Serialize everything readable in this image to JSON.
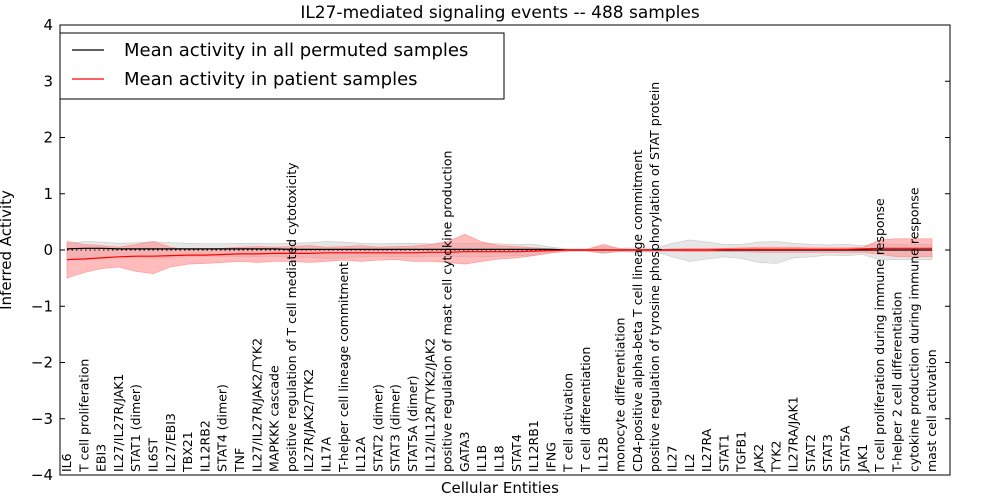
{
  "chart_data": {
    "type": "line",
    "title": "IL27-mediated signaling events -- 488 samples",
    "xlabel": "Cellular Entities",
    "ylabel": "Inferred Activity",
    "ylim": [
      -4,
      4
    ],
    "yticks": [
      4,
      3,
      2,
      1,
      0,
      -1,
      -2,
      -3,
      -4
    ],
    "ytick_labels": [
      "4",
      "3",
      "2",
      "1",
      "0",
      "−1",
      "−2",
      "−3",
      "−4"
    ],
    "categories": [
      "IL6",
      "T cell proliferation",
      "EBI3",
      "IL27/IL27R/JAK1",
      "STAT1 (dimer)",
      "IL6ST",
      "IL27/EBI3",
      "TBX21",
      "IL12RB2",
      "STAT4 (dimer)",
      "TNF",
      "IL27/IL27R/JAK2/TYK2",
      "MAPKKK cascade",
      "positive regulation of T cell mediated cytotoxicity",
      "IL27R/JAK2/TYK2",
      "IL17A",
      "T-helper cell lineage commitment",
      "IL12A",
      "STAT2 (dimer)",
      "STAT3 (dimer)",
      "STAT5A (dimer)",
      "IL12/IL12R/TYK2/JAK2",
      "positive regulation of mast cell cytokine production",
      "GATA3",
      "IL1B",
      "IL18",
      "STAT4",
      "IL12RB1",
      "IFNG",
      "T cell activation",
      "T cell differentiation",
      "IL12B",
      "monocyte differentiation",
      "CD4-positive alpha-beta T cell lineage commitment",
      "positive regulation of tyrosine phosphorylation of STAT protein",
      "IL27",
      "IL2",
      "IL27RA",
      "STAT1",
      "TGFB1",
      "JAK2",
      "TYK2",
      "IL27RA/JAK1",
      "STAT2",
      "STAT3",
      "STAT5A",
      "JAK1",
      "T cell proliferation during immune response",
      "T-helper 2 cell differentiation",
      "cytokine production during immune response",
      "mast cell activation"
    ],
    "series": [
      {
        "name": "Mean activity in all permuted samples",
        "color": "#000000",
        "band_color": "#c8c8c8",
        "values": [
          0.02,
          0.03,
          0.03,
          0.02,
          0.02,
          0.02,
          0.02,
          0.02,
          0.02,
          0.02,
          0.02,
          0.02,
          0.02,
          0.01,
          0.01,
          0.01,
          0.01,
          0.01,
          0.01,
          0.01,
          0.01,
          0.01,
          0.01,
          0.01,
          0.01,
          0.01,
          0.01,
          0.01,
          0.01,
          0.0,
          0.0,
          0.0,
          0.0,
          0.0,
          0.0,
          0.0,
          0.0,
          0.0,
          0.0,
          0.0,
          0.0,
          0.0,
          0.0,
          0.0,
          0.0,
          0.0,
          0.0,
          0.0,
          0.0,
          0.0,
          0.0
        ],
        "upper": [
          0.12,
          0.15,
          0.14,
          0.12,
          0.13,
          0.15,
          0.13,
          0.12,
          0.11,
          0.11,
          0.12,
          0.12,
          0.11,
          0.12,
          0.13,
          0.15,
          0.14,
          0.12,
          0.11,
          0.12,
          0.12,
          0.11,
          0.11,
          0.12,
          0.12,
          0.11,
          0.1,
          0.1,
          0.05,
          0.02,
          0.02,
          0.06,
          0.03,
          0.04,
          0.03,
          0.12,
          0.18,
          0.14,
          0.1,
          0.1,
          0.14,
          0.15,
          0.12,
          0.1,
          0.09,
          0.1,
          0.08,
          0.11,
          0.1,
          0.1,
          0.1
        ],
        "lower": [
          -0.12,
          -0.15,
          -0.14,
          -0.12,
          -0.13,
          -0.15,
          -0.13,
          -0.12,
          -0.11,
          -0.11,
          -0.12,
          -0.12,
          -0.11,
          -0.12,
          -0.13,
          -0.15,
          -0.14,
          -0.12,
          -0.11,
          -0.12,
          -0.12,
          -0.11,
          -0.11,
          -0.12,
          -0.12,
          -0.11,
          -0.1,
          -0.1,
          -0.05,
          -0.02,
          -0.02,
          -0.06,
          -0.03,
          -0.04,
          -0.03,
          -0.12,
          -0.2,
          -0.16,
          -0.12,
          -0.15,
          -0.22,
          -0.24,
          -0.14,
          -0.12,
          -0.09,
          -0.1,
          -0.08,
          -0.18,
          -0.17,
          -0.17,
          -0.17
        ]
      },
      {
        "name": "Mean activity in patient samples",
        "color": "#ff0000",
        "band_color": "#ff9090",
        "values": [
          -0.17,
          -0.16,
          -0.14,
          -0.12,
          -0.11,
          -0.11,
          -0.1,
          -0.09,
          -0.09,
          -0.08,
          -0.07,
          -0.07,
          -0.06,
          -0.06,
          -0.06,
          -0.05,
          -0.05,
          -0.05,
          -0.05,
          -0.05,
          -0.05,
          -0.04,
          -0.04,
          -0.03,
          -0.03,
          -0.03,
          -0.03,
          -0.02,
          -0.01,
          0.0,
          0.0,
          0.0,
          0.0,
          0.0,
          0.0,
          0.0,
          0.0,
          0.0,
          0.01,
          0.01,
          0.01,
          0.01,
          0.01,
          0.01,
          0.01,
          0.01,
          0.02,
          0.03,
          0.03,
          0.03,
          0.03
        ],
        "upper": [
          0.15,
          0.1,
          0.08,
          0.05,
          0.1,
          0.15,
          0.05,
          0.0,
          0.02,
          0.03,
          0.05,
          0.06,
          0.05,
          0.06,
          0.08,
          0.05,
          0.06,
          0.08,
          0.05,
          0.06,
          0.07,
          0.1,
          0.15,
          0.28,
          0.14,
          0.08,
          0.06,
          0.04,
          0.02,
          0.01,
          0.01,
          0.1,
          0.02,
          0.01,
          0.01,
          0.02,
          0.03,
          0.03,
          0.03,
          0.04,
          0.05,
          0.05,
          0.05,
          0.04,
          0.04,
          0.04,
          0.05,
          0.18,
          0.2,
          0.2,
          0.2
        ],
        "lower": [
          -0.5,
          -0.4,
          -0.33,
          -0.3,
          -0.38,
          -0.42,
          -0.3,
          -0.25,
          -0.24,
          -0.22,
          -0.2,
          -0.22,
          -0.2,
          -0.2,
          -0.22,
          -0.2,
          -0.18,
          -0.2,
          -0.18,
          -0.17,
          -0.2,
          -0.2,
          -0.22,
          -0.25,
          -0.2,
          -0.16,
          -0.14,
          -0.1,
          -0.05,
          -0.02,
          -0.02,
          -0.05,
          -0.02,
          -0.02,
          -0.02,
          -0.02,
          -0.03,
          -0.03,
          -0.03,
          -0.03,
          -0.04,
          -0.04,
          -0.04,
          -0.04,
          -0.04,
          -0.04,
          -0.04,
          -0.08,
          -0.12,
          -0.12,
          -0.12
        ]
      }
    ],
    "legend_position": "top-left"
  }
}
